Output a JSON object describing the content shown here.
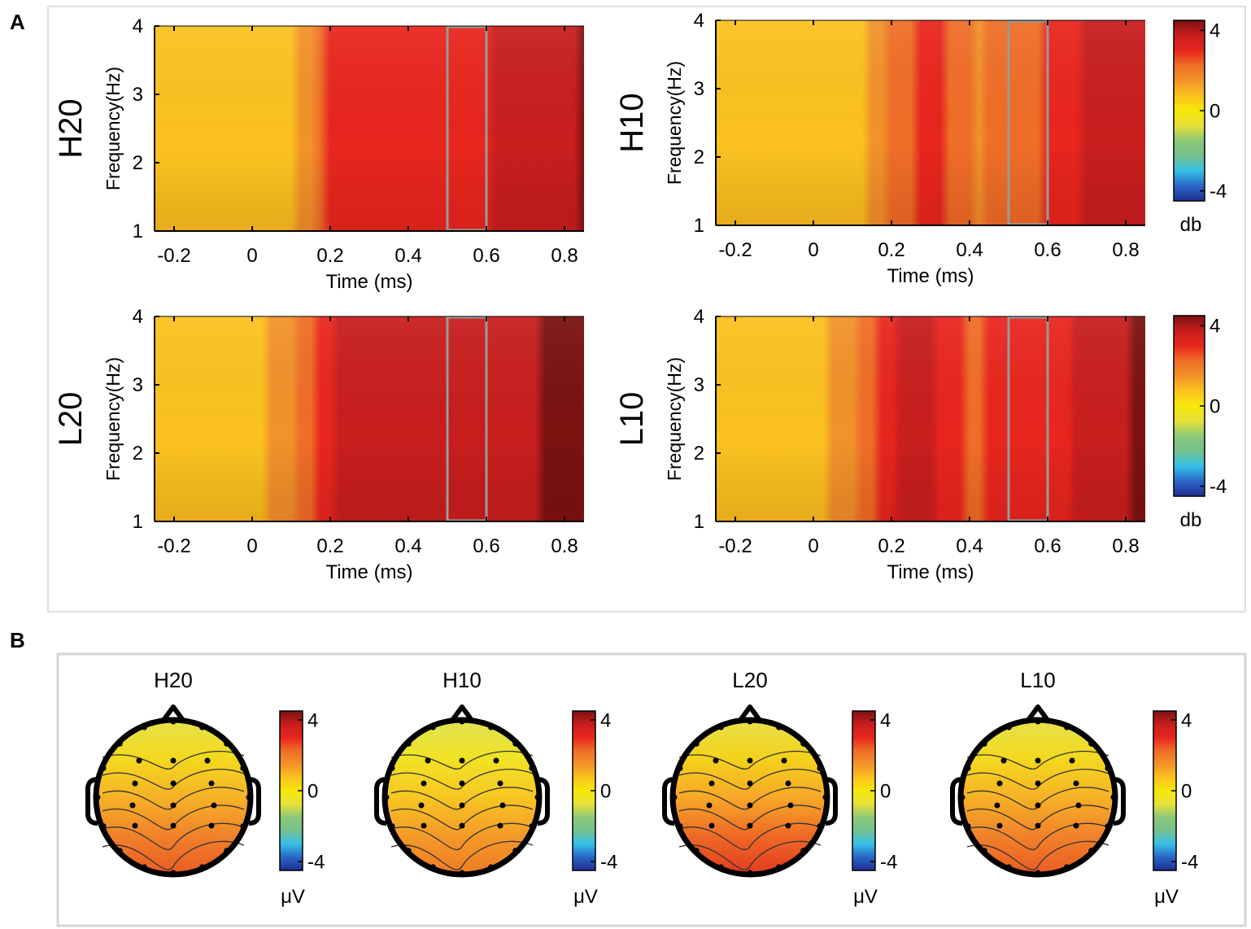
{
  "panel_labels": {
    "a": "A",
    "b": "B"
  },
  "colors": {
    "axis": "#000000",
    "window_box": "#9a9a9a",
    "frame": "#d6d6d6",
    "colormap": [
      "#1e2e90",
      "#2a66c6",
      "#36c0e8",
      "#74c08c",
      "#8cc978",
      "#e6e13a",
      "#f6e80a",
      "#fbc21f",
      "#f2922a",
      "#ef6e27",
      "#e8261e",
      "#c81e1e",
      "#7a1210"
    ]
  },
  "chart_data": [
    {
      "type": "heatmap",
      "id": "H20",
      "row_label": "H20",
      "xlabel": "Time (ms)",
      "ylabel": "Frequency(Hz)",
      "xlim": [
        -0.2,
        0.8
      ],
      "ylim": [
        1,
        4
      ],
      "xticks": [
        "-0.2",
        "0",
        "0.2",
        "0.4",
        "0.6",
        "0.8"
      ],
      "yticks": [
        "1",
        "2",
        "3",
        "4"
      ],
      "time_window": [
        0.5,
        0.6
      ],
      "profile": [
        [
          -0.25,
          0.5
        ],
        [
          0.0,
          0.5
        ],
        [
          0.1,
          0.9
        ],
        [
          0.16,
          1.6
        ],
        [
          0.2,
          2.8
        ],
        [
          0.3,
          3.3
        ],
        [
          0.45,
          3.0
        ],
        [
          0.55,
          3.2
        ],
        [
          0.7,
          3.6
        ],
        [
          0.85,
          4.2
        ]
      ]
    },
    {
      "type": "heatmap",
      "id": "H10",
      "row_label": "H10",
      "xlabel": "Time (ms)",
      "ylabel": "Frequency(Hz)",
      "xlim": [
        -0.2,
        0.8
      ],
      "ylim": [
        1,
        4
      ],
      "xticks": [
        "-0.2",
        "0",
        "0.2",
        "0.4",
        "0.6",
        "0.8"
      ],
      "yticks": [
        "1",
        "2",
        "3",
        "4"
      ],
      "time_window": [
        0.5,
        0.6
      ],
      "profile": [
        [
          -0.25,
          0.5
        ],
        [
          0.1,
          0.6
        ],
        [
          0.17,
          1.6
        ],
        [
          0.3,
          3.0
        ],
        [
          0.42,
          1.8
        ],
        [
          0.55,
          2.4
        ],
        [
          0.7,
          3.4
        ],
        [
          0.85,
          3.9
        ]
      ],
      "colorbar": {
        "ticks": [
          "4",
          "0",
          "-4"
        ],
        "range": [
          -4.5,
          4.5
        ],
        "unit": "db"
      }
    },
    {
      "type": "heatmap",
      "id": "L20",
      "row_label": "L20",
      "xlabel": "Time (ms)",
      "ylabel": "Frequency(Hz)",
      "xlim": [
        -0.2,
        0.8
      ],
      "ylim": [
        1,
        4
      ],
      "xticks": [
        "-0.2",
        "0",
        "0.2",
        "0.4",
        "0.6",
        "0.8"
      ],
      "yticks": [
        "1",
        "2",
        "3",
        "4"
      ],
      "time_window": [
        0.5,
        0.6
      ],
      "profile": [
        [
          -0.25,
          0.5
        ],
        [
          0.0,
          0.7
        ],
        [
          0.1,
          1.6
        ],
        [
          0.2,
          3.3
        ],
        [
          0.3,
          3.9
        ],
        [
          0.4,
          3.4
        ],
        [
          0.55,
          3.7
        ],
        [
          0.7,
          4.0
        ],
        [
          0.85,
          4.5
        ]
      ]
    },
    {
      "type": "heatmap",
      "id": "L10",
      "row_label": "L10",
      "xlabel": "Time (ms)",
      "ylabel": "Frequency(Hz)",
      "xlim": [
        -0.2,
        0.8
      ],
      "ylim": [
        1,
        4
      ],
      "xticks": [
        "-0.2",
        "0",
        "0.2",
        "0.4",
        "0.6",
        "0.8"
      ],
      "yticks": [
        "1",
        "2",
        "3",
        "4"
      ],
      "time_window": [
        0.5,
        0.6
      ],
      "profile": [
        [
          -0.25,
          0.5
        ],
        [
          0.0,
          0.8
        ],
        [
          0.1,
          1.6
        ],
        [
          0.2,
          3.3
        ],
        [
          0.3,
          3.6
        ],
        [
          0.4,
          2.6
        ],
        [
          0.55,
          2.7
        ],
        [
          0.7,
          3.6
        ],
        [
          0.85,
          4.3
        ]
      ],
      "colorbar": {
        "ticks": [
          "4",
          "0",
          "-4"
        ],
        "range": [
          -4.5,
          4.5
        ],
        "unit": "db"
      }
    },
    {
      "type": "topomap",
      "maps": [
        {
          "title": "H20",
          "colorbar_ticks": [
            "4",
            "0",
            "-4"
          ],
          "unit": "μV"
        },
        {
          "title": "H10",
          "colorbar_ticks": [
            "4",
            "0",
            "-4"
          ],
          "unit": "μV"
        },
        {
          "title": "L20",
          "colorbar_ticks": [
            "4",
            "0",
            "-4"
          ],
          "unit": "μV"
        },
        {
          "title": "L10",
          "colorbar_ticks": [
            "4",
            "0",
            "-4"
          ],
          "unit": "μV"
        }
      ]
    }
  ]
}
